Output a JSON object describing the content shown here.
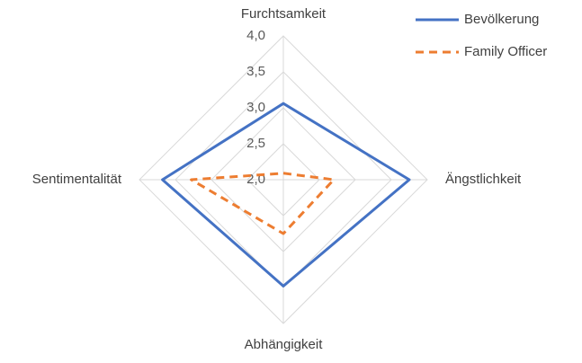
{
  "chart_data": {
    "type": "radar",
    "categories": [
      "Furchtsamkeit",
      "Ängstlichkeit",
      "Abhängigkeit",
      "Sentimentalität"
    ],
    "series": [
      {
        "name": "Bevölkerung",
        "color": "#4472c4",
        "dash": false,
        "values": [
          3.06,
          3.75,
          3.48,
          3.68
        ]
      },
      {
        "name": "Family Officer",
        "color": "#ed7d31",
        "dash": true,
        "values": [
          2.09,
          2.7,
          2.75,
          3.28
        ]
      }
    ],
    "rlim": [
      2.0,
      4.0
    ],
    "rticks": [
      {
        "value": 2.0,
        "label": "2,0"
      },
      {
        "value": 2.5,
        "label": "2,5"
      },
      {
        "value": 3.0,
        "label": "3,0"
      },
      {
        "value": 3.5,
        "label": "3,5"
      },
      {
        "value": 4.0,
        "label": "4,0"
      }
    ],
    "grid": true,
    "legend": "top-right"
  }
}
